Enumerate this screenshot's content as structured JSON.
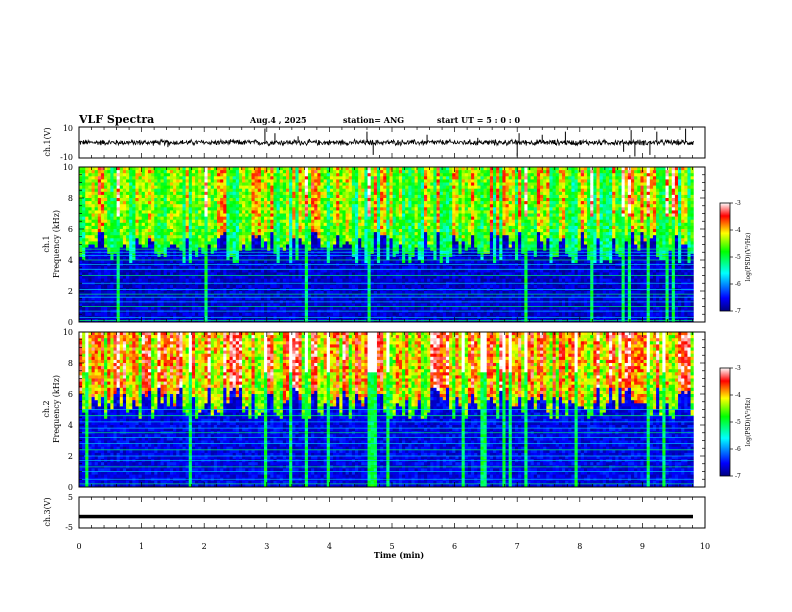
{
  "header": {
    "title": "VLF Spectra",
    "date": "Aug.4 , 2025",
    "station": "station= ANG",
    "start": "start UT = 5 : 0 : 0"
  },
  "chart_data": [
    {
      "type": "line",
      "name": "ch1-waveform",
      "ylabel": "ch.1(V)",
      "yticks": [
        "10",
        "-10"
      ],
      "ylim": [
        -10,
        10
      ],
      "xlim": [
        0,
        10
      ],
      "baseline": 0,
      "noise_amplitude": 1.5,
      "spikes": [
        {
          "x": 1.42,
          "y": -3
        },
        {
          "x": 2.97,
          "y": 9
        },
        {
          "x": 3.13,
          "y": 6
        },
        {
          "x": 3.5,
          "y": 4
        },
        {
          "x": 4.6,
          "y": 7
        },
        {
          "x": 4.7,
          "y": -8
        },
        {
          "x": 5.56,
          "y": 5
        },
        {
          "x": 6.37,
          "y": 3
        },
        {
          "x": 7.0,
          "y": -9
        },
        {
          "x": 7.03,
          "y": 6
        },
        {
          "x": 7.4,
          "y": 5
        },
        {
          "x": 7.77,
          "y": 7
        },
        {
          "x": 8.7,
          "y": -6
        },
        {
          "x": 8.82,
          "y": 8
        },
        {
          "x": 8.88,
          "y": -9
        },
        {
          "x": 9.12,
          "y": -8
        },
        {
          "x": 9.23,
          "y": 7
        },
        {
          "x": 9.69,
          "y": 9
        }
      ]
    },
    {
      "type": "heatmap",
      "name": "ch1-spectrogram",
      "ylabel_top": "ch.1",
      "ylabel": "Frequency (kHz)",
      "yticks": [
        "0",
        "2",
        "4",
        "6",
        "8",
        "10"
      ],
      "ylim": [
        0,
        10
      ],
      "xlim": [
        0,
        10.0
      ],
      "data_extent_x": 9.82,
      "colorbar_label": "log(PSD)(V²/Hz)",
      "colorbar_ticks": [
        "-3",
        "-4",
        "-5",
        "-6",
        "-7"
      ],
      "crange": [
        -7,
        -3
      ],
      "background_level": -6.7,
      "cutoff_khz": 4.8,
      "top_level": -4.6,
      "lines_khz": [
        0.1,
        0.3,
        0.7,
        1.0,
        1.3,
        1.6,
        1.8,
        2.1,
        2.5,
        3.0,
        3.4,
        3.7,
        4.0,
        4.3,
        4.5,
        4.7
      ]
    },
    {
      "type": "heatmap",
      "name": "ch2-spectrogram",
      "ylabel_top": "ch.2",
      "ylabel": "Frequency (kHz)",
      "yticks": [
        "0",
        "2",
        "4",
        "6",
        "8",
        "10"
      ],
      "ylim": [
        0,
        10
      ],
      "xlim": [
        0,
        10.0
      ],
      "data_extent_x": 9.82,
      "colorbar_label": "log(PSD)(V²/Hz)",
      "colorbar_ticks": [
        "-3",
        "-4",
        "-5",
        "-6",
        "-7"
      ],
      "crange": [
        -7,
        -3
      ],
      "background_level": -6.6,
      "cutoff_khz": 5.4,
      "top_level": -4.0,
      "lines_khz": [
        0.2,
        0.5,
        1.0,
        1.3,
        1.7,
        2.0,
        2.4,
        2.8,
        3.2,
        3.5,
        3.8,
        4.2,
        4.6,
        5.0
      ]
    },
    {
      "type": "line",
      "name": "ch3-waveform",
      "ylabel": "ch.3(V)",
      "yticks": [
        "5",
        "-5"
      ],
      "ylim": [
        -5,
        5
      ],
      "xlim": [
        0,
        10
      ],
      "baseline": -1.3
    }
  ],
  "xaxis": {
    "label": "Time (min)",
    "ticks": [
      "0",
      "1",
      "2",
      "3",
      "4",
      "5",
      "6",
      "7",
      "8",
      "9",
      "10"
    ]
  }
}
